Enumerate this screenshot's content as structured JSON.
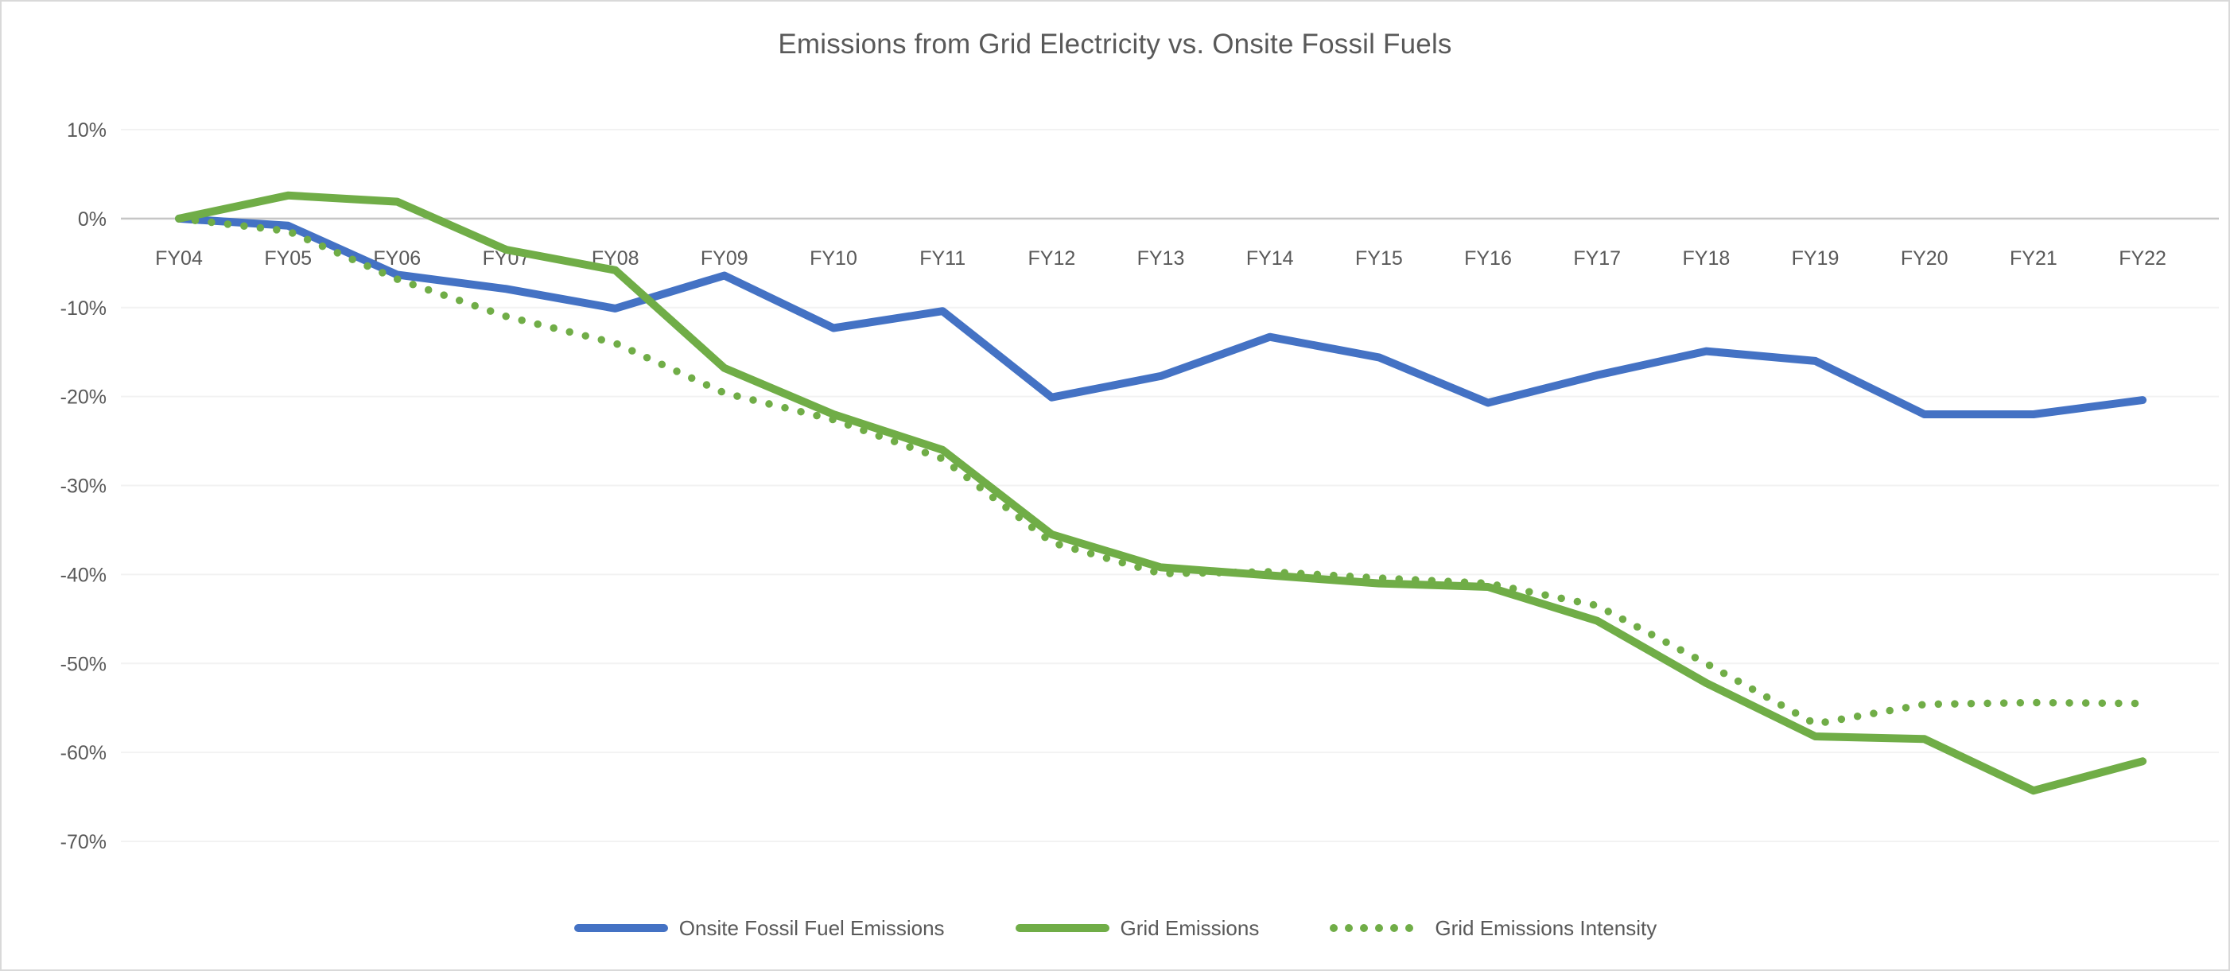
{
  "page": {
    "background_color": "#ffffff",
    "border_color": "#d9d9d9"
  },
  "chart_data": {
    "type": "line",
    "title": "Emissions from Grid Electricity vs. Onsite Fossil Fuels",
    "text_color": "#595959",
    "grid": {
      "show": true,
      "line_color": "#f2f2f2",
      "zero_line_color": "#c6c6c6"
    },
    "legend": {
      "position": "bottom"
    },
    "categories": [
      "FY04",
      "FY05",
      "FY06",
      "FY07",
      "FY08",
      "FY09",
      "FY10",
      "FY11",
      "FY12",
      "FY13",
      "FY14",
      "FY15",
      "FY16",
      "FY17",
      "FY18",
      "FY19",
      "FY20",
      "FY21",
      "FY22"
    ],
    "y_axis": {
      "min": -70,
      "max": 10,
      "step": 10,
      "unit": "percent",
      "ticks": [
        {
          "value": 10,
          "label": "10%"
        },
        {
          "value": 0,
          "label": "0%"
        },
        {
          "value": -10,
          "label": "-10%"
        },
        {
          "value": -20,
          "label": "-20%"
        },
        {
          "value": -30,
          "label": "-30%"
        },
        {
          "value": -40,
          "label": "-40%"
        },
        {
          "value": -50,
          "label": "-50%"
        },
        {
          "value": -60,
          "label": "-60%"
        },
        {
          "value": -70,
          "label": "-70%"
        }
      ]
    },
    "series": [
      {
        "name": "Onsite Fossil Fuel Emissions",
        "color": "#4472c4",
        "style": "solid",
        "values": [
          0,
          -0.8,
          -6.3,
          -7.9,
          -10.1,
          -6.4,
          -12.3,
          -10.4,
          -20.1,
          -17.7,
          -13.3,
          -15.6,
          -20.7,
          -17.6,
          -14.9,
          -16.0,
          -22.0,
          -22.0,
          -20.4
        ]
      },
      {
        "name": "Grid Emissions",
        "color": "#70ad47",
        "style": "solid",
        "values": [
          0,
          2.6,
          1.9,
          -3.5,
          -5.8,
          -16.8,
          -22.0,
          -26.0,
          -35.5,
          -39.2,
          -40.1,
          -41.0,
          -41.4,
          -45.2,
          -52.2,
          -58.2,
          -58.5,
          -64.3,
          -61.0
        ]
      },
      {
        "name": "Grid Emissions Intensity",
        "color": "#70ad47",
        "style": "dotted",
        "values": [
          0,
          -1.4,
          -6.8,
          -11.0,
          -14.0,
          -19.6,
          -22.6,
          -27.0,
          -36.4,
          -39.9,
          -39.7,
          -40.4,
          -41.0,
          -43.5,
          -50.0,
          -56.8,
          -54.6,
          -54.4,
          -54.5
        ]
      }
    ]
  }
}
